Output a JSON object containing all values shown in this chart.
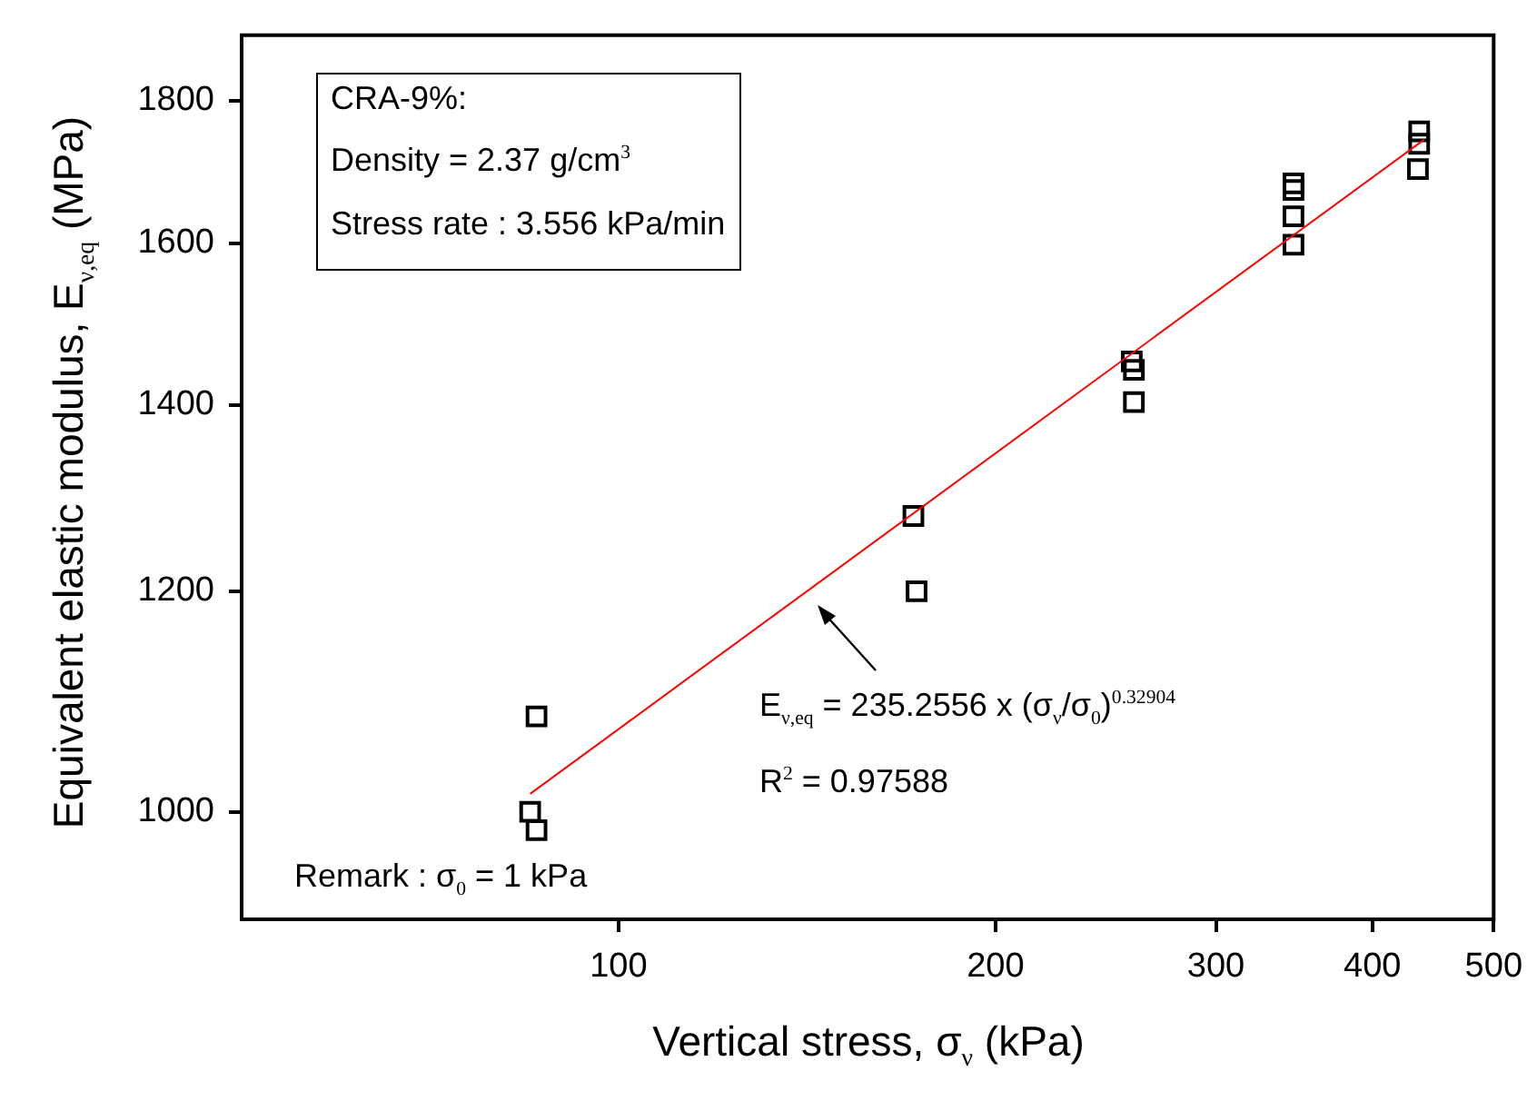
{
  "chart_data": {
    "type": "scatter",
    "xlabel": "Vertical stress, σ$_{ν}$ (kPa)",
    "ylabel": "Equivalent elastic modulus, E$_{ν,eq}$ (MPa)",
    "log": "xy",
    "xlim": [
      50,
      500
    ],
    "xticks": [
      100,
      200,
      300,
      400,
      500
    ],
    "ylim": [
      915,
      1900
    ],
    "yticks": [
      1000,
      1200,
      1400,
      1600,
      1800
    ],
    "grid": false,
    "legend": false,
    "series": [
      {
        "type": "scatter",
        "color": "#000000",
        "marker": "square",
        "x": [
          86,
          85,
          86,
          172,
          173,
          257,
          258,
          258,
          346,
          346,
          346,
          346,
          436,
          436,
          435
        ],
        "values": [
          1082,
          1000,
          985,
          1277,
          1200,
          1451,
          1441,
          1403,
          1681,
          1672,
          1636,
          1598,
          1755,
          1737,
          1701
        ]
      },
      {
        "type": "line",
        "color": "#ff0000",
        "marker": "none",
        "line_style": "solid",
        "x": [
          85,
          440
        ],
        "values": [
          1015,
          1743
        ]
      }
    ],
    "annotations": [
      "CRA-9%:",
      "Density = 2.37 g/cm$^{3}$",
      "Stress rate : 3.556 kPa/min",
      "E$_{ν,eq}$ = 235.2556 x (σ$_{ν}$/σ$_{0}$)$^{0.32904}$",
      "R$^{2}$ = 0.97588",
      "Remark : σ$_{0}$ = 1 kPa"
    ]
  }
}
